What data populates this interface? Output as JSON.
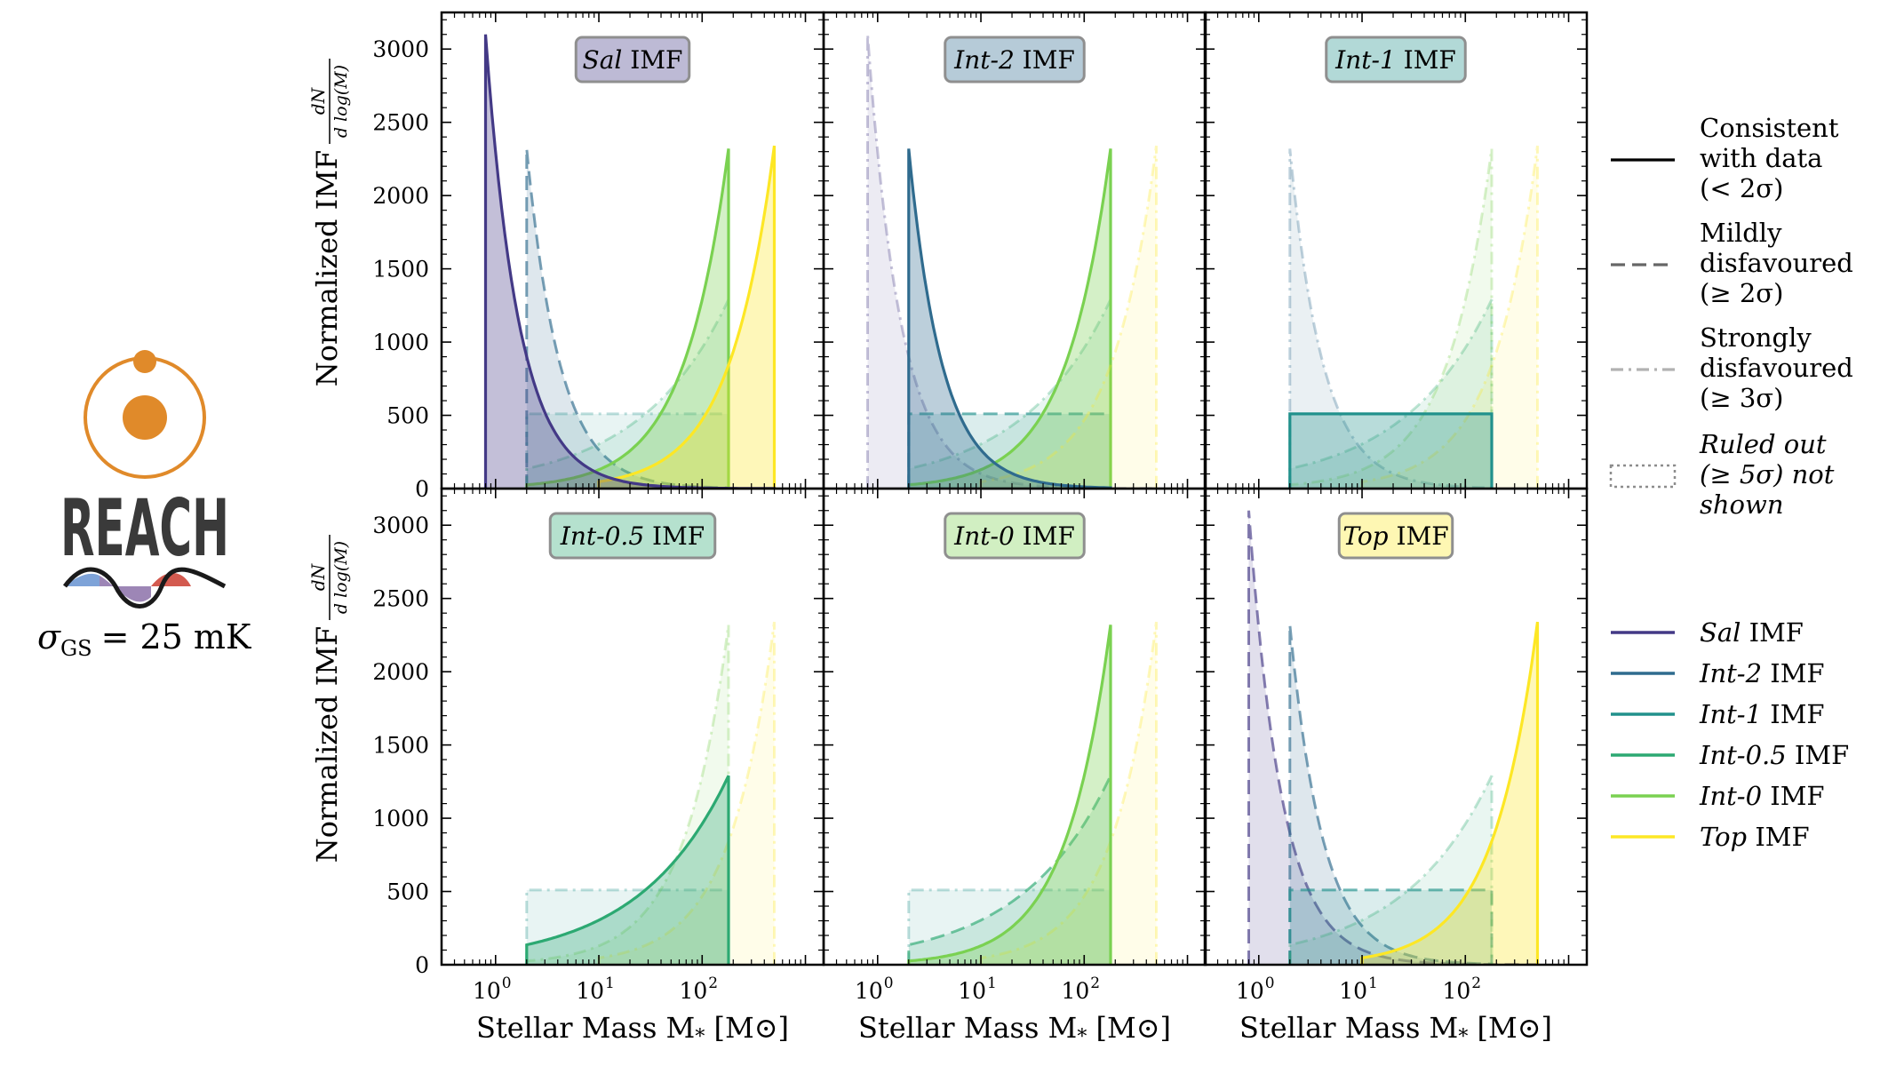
{
  "logo": {
    "word": "REACH",
    "sigma_label": "σ",
    "sigma_sub": "GS",
    "sigma_value": "= 25 mK"
  },
  "colors": {
    "sal": "#433986",
    "int2": "#2f6b8e",
    "int1": "#21918c",
    "int05": "#2ca972",
    "int0": "#7ad151",
    "top": "#fde725",
    "logo_orange": "#e08a2a",
    "logo_text": "#3a3a3a"
  },
  "axes_text": {
    "ylabel": "Normalized IMF",
    "ylabel_frac_num": "dN",
    "ylabel_frac_den": "d log(M)",
    "xlabel": "Stellar Mass M",
    "xlabel_sub": "*",
    "xlabel_unit": "[M",
    "xlabel_unit_close": "]"
  },
  "chart_data": {
    "type": "area",
    "layout": "2 rows x 3 columns, shared axes",
    "xscale": "log",
    "xlim": [
      0.3,
      1500
    ],
    "ylim": [
      0,
      3250
    ],
    "xticks": [
      1,
      10,
      100
    ],
    "xtick_labels": [
      "10",
      "10",
      "10"
    ],
    "xtick_exps": [
      "0",
      "1",
      "2"
    ],
    "yticks": [
      0,
      500,
      1000,
      1500,
      2000,
      2500,
      3000
    ],
    "ytick_labels": [
      "0",
      "500",
      "1000",
      "1500",
      "2000",
      "2500",
      "3000"
    ],
    "imfs": [
      {
        "key": "sal",
        "name": "Sal",
        "mass_range": [
          0.8,
          500
        ],
        "alpha": 2.35,
        "peak": 3100
      },
      {
        "key": "int2",
        "name": "Int-2",
        "mass_range": [
          2,
          180
        ],
        "alpha": 2.35,
        "peak": 2320
      },
      {
        "key": "int1",
        "name": "Int-1",
        "mass_range": [
          2,
          180
        ],
        "alpha": 1.0,
        "peak": 510
      },
      {
        "key": "int05",
        "name": "Int-0.5",
        "mass_range": [
          2,
          180
        ],
        "alpha": 0.5,
        "peak": 1290
      },
      {
        "key": "int0",
        "name": "Int-0",
        "mass_range": [
          2,
          180
        ],
        "alpha": 0.0,
        "peak": 2320
      },
      {
        "key": "top",
        "name": "Top",
        "mass_range": [
          10,
          500
        ],
        "alpha": 0.0,
        "peak": 2340
      }
    ],
    "panels": [
      {
        "title_em": "Sal",
        "title_rest": " IMF",
        "highlight": "sal",
        "curves": {
          "sal": "solid",
          "int2": "dashed",
          "int1": "dashdot",
          "int05": "dashdot",
          "int0": "solid",
          "top": "solid"
        }
      },
      {
        "title_em": "Int-2",
        "title_rest": " IMF",
        "highlight": "int2",
        "curves": {
          "sal": "dashdot",
          "int2": "solid",
          "int1": "dashed",
          "int05": "dashdot",
          "int0": "solid",
          "top": "dashdot"
        }
      },
      {
        "title_em": "Int-1",
        "title_rest": " IMF",
        "highlight": "int1",
        "curves": {
          "sal": "none",
          "int2": "dashdot",
          "int1": "solid",
          "int05": "dashdot",
          "int0": "dashdot",
          "top": "dashdot"
        }
      },
      {
        "title_em": "Int-0.5",
        "title_rest": " IMF",
        "highlight": "int05",
        "curves": {
          "sal": "none",
          "int2": "none",
          "int1": "dashdot",
          "int05": "solid",
          "int0": "dashdot",
          "top": "dashdot"
        }
      },
      {
        "title_em": "Int-0",
        "title_rest": " IMF",
        "highlight": "int0",
        "curves": {
          "sal": "none",
          "int2": "none",
          "int1": "dashdot",
          "int05": "dashed",
          "int0": "solid",
          "top": "dashdot"
        }
      },
      {
        "title_em": "Top",
        "title_rest": " IMF",
        "highlight": "top",
        "curves": {
          "sal": "dashed",
          "int2": "dashed",
          "int1": "dashed",
          "int05": "dashdot",
          "int0": "none",
          "top": "solid"
        }
      }
    ],
    "style_legend": [
      {
        "style": "solid",
        "lines": [
          "Consistent",
          "with data",
          "(< 2σ)"
        ]
      },
      {
        "style": "dashed",
        "lines": [
          "Mildly",
          "disfavoured",
          "(≥ 2σ)"
        ]
      },
      {
        "style": "dashdot",
        "lines": [
          "Strongly",
          "disfavoured",
          "(≥ 3σ)"
        ]
      },
      {
        "style": "dotted",
        "lines": [
          "Ruled out",
          "(≥ 5σ) not",
          "shown"
        ]
      }
    ],
    "imf_legend": [
      {
        "key": "sal",
        "name": "Sal",
        "suffix": " IMF"
      },
      {
        "key": "int2",
        "name": "Int-2",
        "suffix": " IMF"
      },
      {
        "key": "int1",
        "name": "Int-1",
        "suffix": " IMF"
      },
      {
        "key": "int05",
        "name": "Int-0.5",
        "suffix": " IMF"
      },
      {
        "key": "int0",
        "name": "Int-0",
        "suffix": " IMF"
      },
      {
        "key": "top",
        "name": "Top",
        "suffix": " IMF"
      }
    ]
  }
}
